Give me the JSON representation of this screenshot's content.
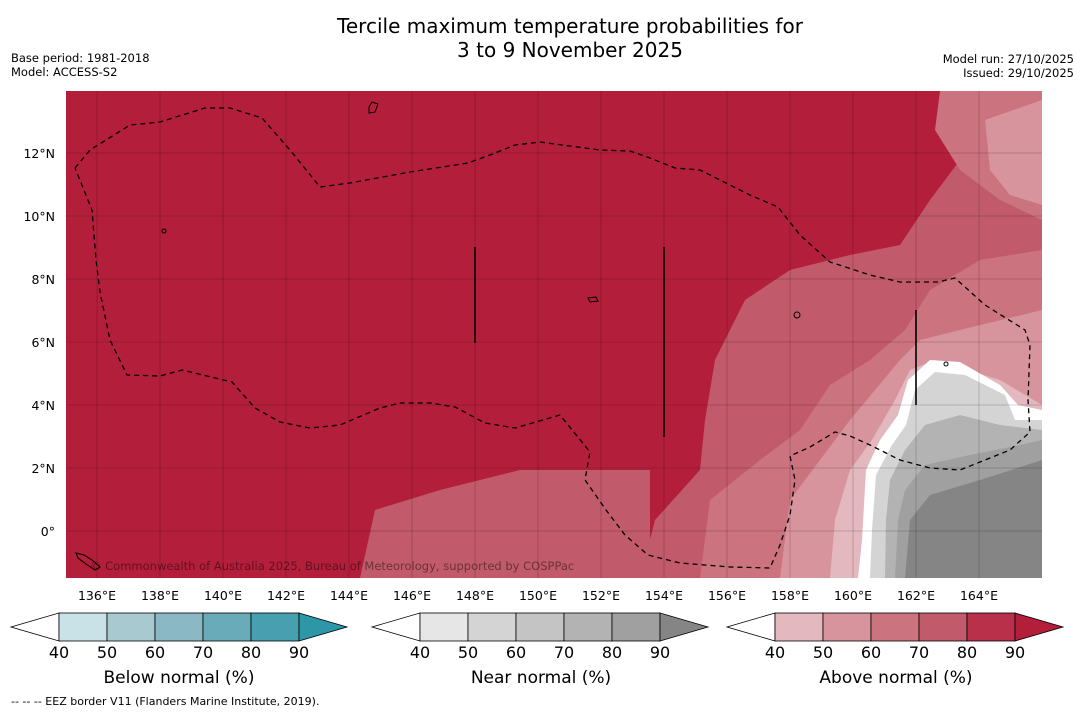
{
  "header": {
    "title_line1": "Tercile maximum temperature probabilities for",
    "title_line2": "3 to 9 November 2025",
    "base_period": "Base period: 1981-2018",
    "model": "Model: ACCESS-S2",
    "model_run": "Model run: 27/10/2025",
    "issued": "Issued: 29/10/2025"
  },
  "map": {
    "x_ticks": [
      "136°E",
      "138°E",
      "140°E",
      "142°E",
      "144°E",
      "146°E",
      "148°E",
      "150°E",
      "152°E",
      "154°E",
      "156°E",
      "158°E",
      "160°E",
      "162°E",
      "164°E"
    ],
    "y_ticks": [
      "12°N",
      "10°N",
      "8°N",
      "6°N",
      "4°N",
      "2°N",
      "0°"
    ],
    "copyright": "© Commonwealth of Australia 2025, Bureau of Meteorology, supported by COSPPac",
    "base_color": "#b31e3b"
  },
  "colorbars": {
    "ticks": [
      "40",
      "50",
      "60",
      "70",
      "80",
      "90"
    ],
    "below": {
      "label": "Below normal (%)",
      "colors": [
        "#ffffff",
        "#c9e2e8",
        "#a8c9cf",
        "#8ab8c4",
        "#6aabb9",
        "#489fb0",
        "#2d97a8"
      ]
    },
    "near": {
      "label": "Near normal (%)",
      "colors": [
        "#ffffff",
        "#e6e6e6",
        "#d4d4d4",
        "#c4c4c4",
        "#b3b3b3",
        "#a0a0a0",
        "#858585"
      ]
    },
    "above": {
      "label": "Above normal (%)",
      "colors": [
        "#ffffff",
        "#e3b8bf",
        "#d8949d",
        "#cb737f",
        "#c15a6a",
        "#b83049",
        "#b31e3b"
      ]
    }
  },
  "footer": {
    "eez": "--  --  -- EEZ border V11 (Flanders Marine Institute, 2019)."
  }
}
